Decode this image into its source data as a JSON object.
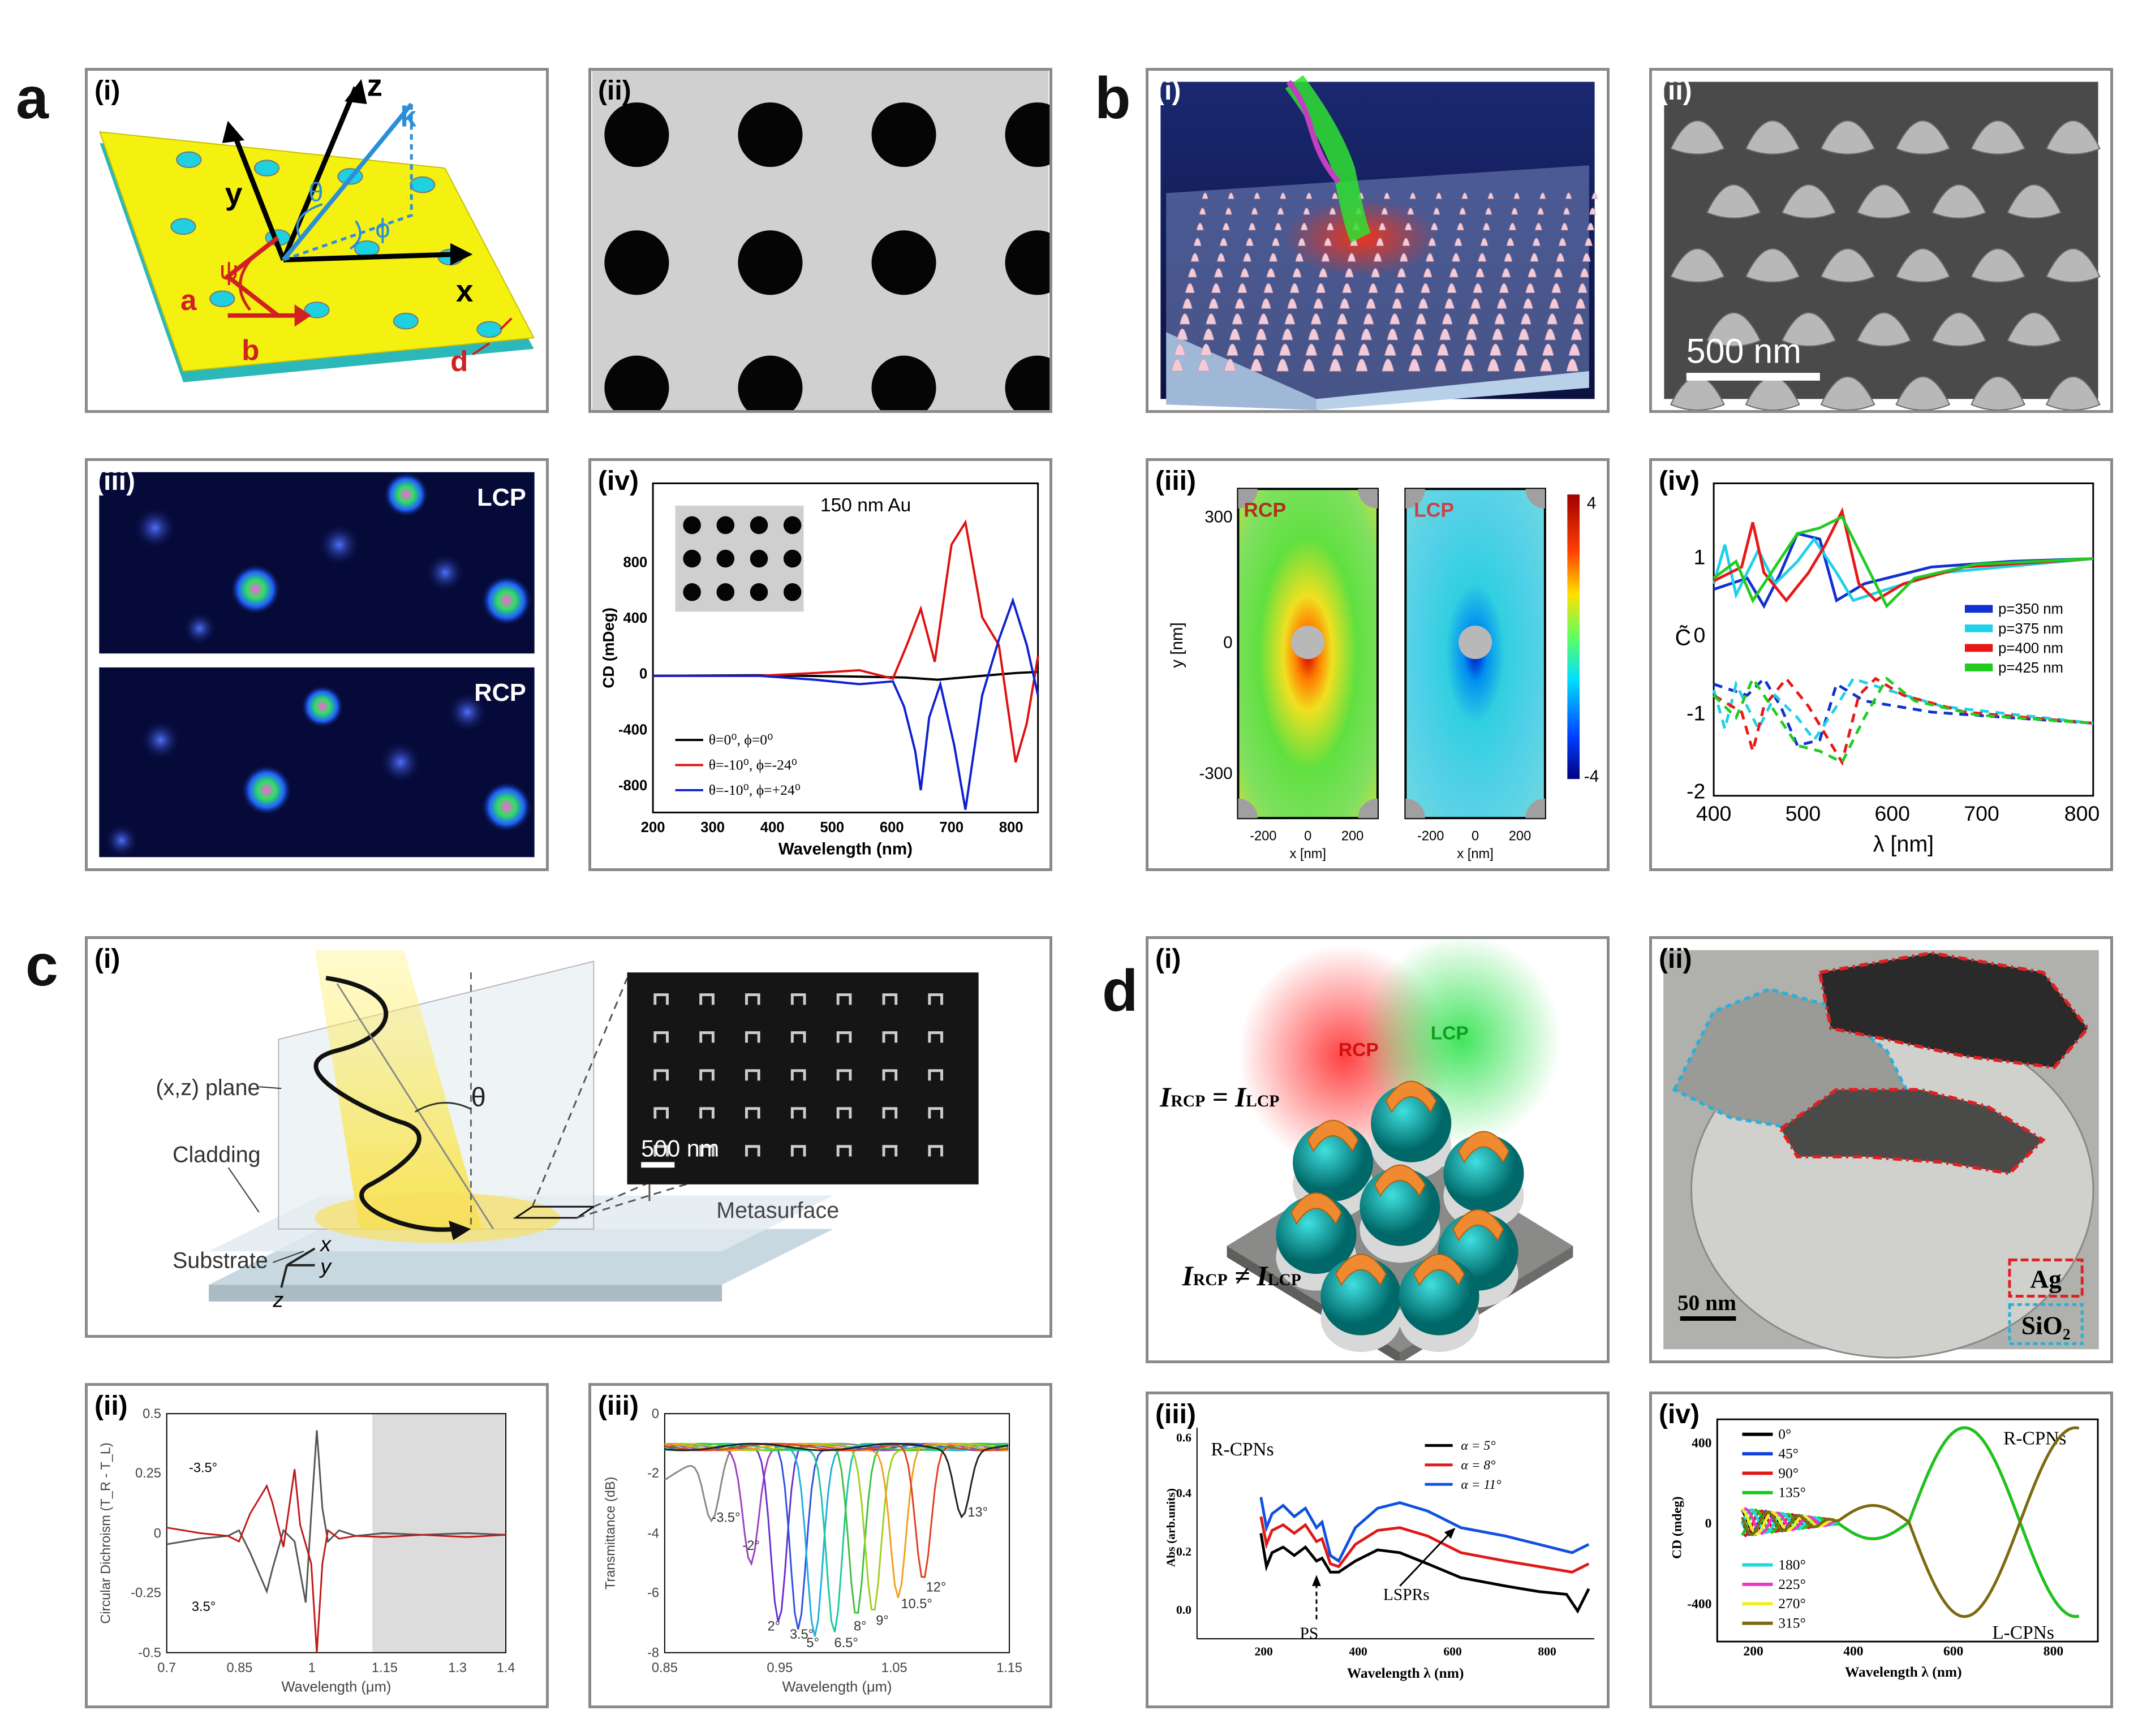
{
  "labels": {
    "a": "a",
    "b": "b",
    "c": "c",
    "d": "d"
  },
  "sub": {
    "i": "(i)",
    "ii": "(ii)",
    "iii": "(iii)",
    "iv": "(iv)"
  },
  "a_i": {
    "z": "z",
    "y": "y",
    "x": "x",
    "k": "k",
    "theta": "θ",
    "phi": "ϕ",
    "psi": "ψ",
    "a": "a",
    "b": "b",
    "d": "d"
  },
  "a_iii": {
    "top": "LCP",
    "bottom": "RCP"
  },
  "a_iv": {
    "inset_label": "150 nm Au",
    "ylabel": "CD (mDeg)",
    "xlabel": "Wavelength (nm)",
    "xticks": [
      "200",
      "300",
      "400",
      "500",
      "600",
      "700",
      "800"
    ],
    "yticks": [
      "800",
      "400",
      "0",
      "-400",
      "-800"
    ],
    "legend": [
      "θ=0⁰, ϕ=0⁰",
      "θ=-10⁰, ϕ=-24⁰",
      "θ=-10⁰, ϕ=+24⁰"
    ],
    "colors": [
      "#000000",
      "#e01010",
      "#1020d0"
    ]
  },
  "b_ii": {
    "scale": "500 nm"
  },
  "b_iii": {
    "ylabel": "y [nm]",
    "xlabel": "x [nm]",
    "left": "RCP",
    "right": "LCP",
    "yticks": [
      "300",
      "0",
      "-300"
    ],
    "xticks": [
      "-200",
      "0",
      "200"
    ],
    "cbar": [
      "4",
      "-4"
    ]
  },
  "b_iv": {
    "ylabel": "C̃",
    "xlabel": "λ [nm]",
    "xticks": [
      "400",
      "500",
      "600",
      "700",
      "800"
    ],
    "yticks": [
      "1",
      "0",
      "-1",
      "-2"
    ],
    "legend": [
      "p=350 nm",
      "p=375 nm",
      "p=400 nm",
      "p=425 nm"
    ],
    "colors": [
      "#1030d0",
      "#20d0e8",
      "#e81818",
      "#20cc20"
    ]
  },
  "c_i": {
    "plane": "(x,z) plane",
    "theta": "θ",
    "cladding": "Cladding",
    "substrate": "Substrate",
    "meta": "Metasurface",
    "scale": "500 nm",
    "x": "x",
    "y": "y",
    "z": "z"
  },
  "c_ii": {
    "ylabel": "Circular Dichroism (T_R - T_L)",
    "xlabel": "Wavelength (μm)",
    "xticks": [
      "0.7",
      "0.85",
      "1",
      "1.15",
      "1.3",
      "1.4"
    ],
    "yticks": [
      "0.5",
      "0.25",
      "0",
      "-0.25",
      "-0.5"
    ],
    "ann1": "-3.5°",
    "ann2": "3.5°"
  },
  "c_iii": {
    "ylabel": "Transmittance (dB)",
    "xlabel": "Wavelength (μm)",
    "xticks": [
      "0.85",
      "0.95",
      "1.05",
      "1.15"
    ],
    "yticks": [
      "0",
      "-2",
      "-4",
      "-6",
      "-8"
    ],
    "angles": [
      "-3.5°",
      "-2°",
      "2°",
      "3.5°",
      "5°",
      "6.5°",
      "8°",
      "9°",
      "10.5°",
      "12°",
      "13°"
    ]
  },
  "d_i": {
    "rcp": "RCP",
    "lcp": "LCP",
    "eq": "I",
    "eq_sub1": "RCP",
    "eq_mid": " = I",
    "eq_sub2": "LCP",
    "neq_mid": " ≠ I"
  },
  "d_ii": {
    "scale": "50 nm",
    "ag": "Ag",
    "sio2": "SiO₂"
  },
  "d_iii": {
    "ylabel": "Abs (arb.units)",
    "xlabel": "Wavelength λ (nm)",
    "title": "R-CPNs",
    "xticks": [
      "200",
      "400",
      "600",
      "800"
    ],
    "yticks": [
      "0.6",
      "0.4",
      "0.2",
      "0.0"
    ],
    "legend": [
      "α = 5°",
      "α = 8°",
      "α = 11°"
    ],
    "ann_ps": "PS",
    "ann_lspr": "LSPRs"
  },
  "d_iv": {
    "ylabel": "CD (mdeg)",
    "xlabel": "Wavelength λ (nm)",
    "rtitle": "R-CPNs",
    "ltitle": "L-CPNs",
    "xticks": [
      "200",
      "400",
      "600",
      "800"
    ],
    "yticks": [
      "400",
      "0",
      "-400"
    ],
    "legend": [
      "0°",
      "45°",
      "90°",
      "135°",
      "180°",
      "225°",
      "270°",
      "315°"
    ],
    "colors": [
      "#000000",
      "#1040e0",
      "#e01818",
      "#18c818",
      "#20d8e0",
      "#e838c8",
      "#f0f020",
      "#7a6a10"
    ]
  }
}
